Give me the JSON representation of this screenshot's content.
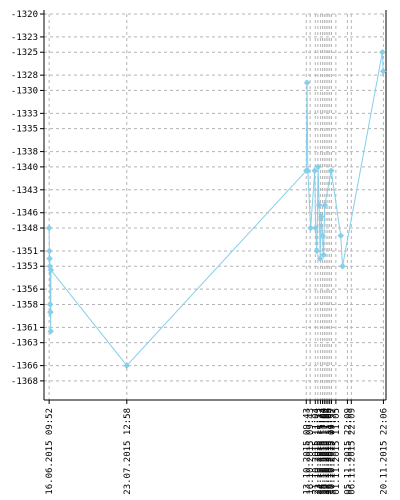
{
  "chart_data": {
    "type": "line",
    "title": "",
    "xlabel": "",
    "ylabel": "",
    "ylim": [
      -1370.5,
      -1320
    ],
    "grid": true,
    "legend": "none",
    "colors": {
      "line": "#87ceeb",
      "marker": "#87ceeb",
      "grid": "#b4b4b4",
      "axis": "#000000",
      "tick": "#000000"
    },
    "y_ticks": [
      -1320,
      -1323,
      -1325,
      -1328,
      -1330,
      -1333,
      -1335,
      -1338,
      -1340,
      -1343,
      -1346,
      -1348,
      -1351,
      -1353,
      -1356,
      -1358,
      -1361,
      -1363,
      -1366,
      -1368
    ],
    "x_tick_labels": [
      {
        "t": 0,
        "text": "16.06.2015 09:52"
      },
      {
        "t": 30.2,
        "text": "23.07.2015 12:58"
      },
      {
        "t": 100,
        "text": "13.10.2015 09:43"
      },
      {
        "t": 101.5,
        "text": "16.10.2015 09:43"
      },
      {
        "t": 103.5,
        "text": "21.10.2015 11:04"
      },
      {
        "t": 104.5,
        "text": "23.10.2015 11:13"
      },
      {
        "t": 105.5,
        "text": "24.10.2015 15:23"
      },
      {
        "t": 106.3,
        "text": "25.10.2015 13:04"
      },
      {
        "t": 107,
        "text": "26.10.2015 11:00"
      },
      {
        "t": 107.7,
        "text": "27.10.2015 11:04"
      },
      {
        "t": 108.4,
        "text": "28.10.2015 11:06"
      },
      {
        "t": 109.1,
        "text": "29.10.2015 11:04"
      },
      {
        "t": 109.8,
        "text": "30.10.2015 09:52"
      },
      {
        "t": 111.5,
        "text": "01.11.2015 11:05"
      },
      {
        "t": 116,
        "text": "05.11.2015 22:09"
      },
      {
        "t": 117.5,
        "text": "06.11.2015 22:09"
      },
      {
        "t": 130,
        "text": "20.11.2015 22:06"
      }
    ],
    "series": [
      {
        "points": [
          {
            "t": 0,
            "y": -1348
          },
          {
            "t": 0.1,
            "y": -1351
          },
          {
            "t": 0.2,
            "y": -1352
          },
          {
            "t": 0.3,
            "y": -1353
          },
          {
            "t": 0.4,
            "y": -1358
          },
          {
            "t": 0.5,
            "y": -1359
          },
          {
            "t": 0.6,
            "y": -1361.5
          },
          {
            "t": 0.7,
            "y": -1353.5
          },
          {
            "t": 30.2,
            "y": -1366
          },
          {
            "t": 100,
            "y": -1340.5
          },
          {
            "t": 100.3,
            "y": -1329
          },
          {
            "t": 100.6,
            "y": -1340.5
          },
          {
            "t": 101.7,
            "y": -1348
          },
          {
            "t": 103.3,
            "y": -1340.5
          },
          {
            "t": 103.6,
            "y": -1348
          },
          {
            "t": 104.1,
            "y": -1351
          },
          {
            "t": 104.6,
            "y": -1340
          },
          {
            "t": 105,
            "y": -1345
          },
          {
            "t": 105.4,
            "y": -1352
          },
          {
            "t": 105.8,
            "y": -1346.5
          },
          {
            "t": 106.3,
            "y": -1349
          },
          {
            "t": 106.7,
            "y": -1351.5
          },
          {
            "t": 107.2,
            "y": -1345
          },
          {
            "t": 109.7,
            "y": -1340.5
          },
          {
            "t": 113.4,
            "y": -1349
          },
          {
            "t": 114.1,
            "y": -1353
          },
          {
            "t": 129.6,
            "y": -1325
          },
          {
            "t": 129.9,
            "y": -1327.5
          }
        ]
      }
    ]
  }
}
